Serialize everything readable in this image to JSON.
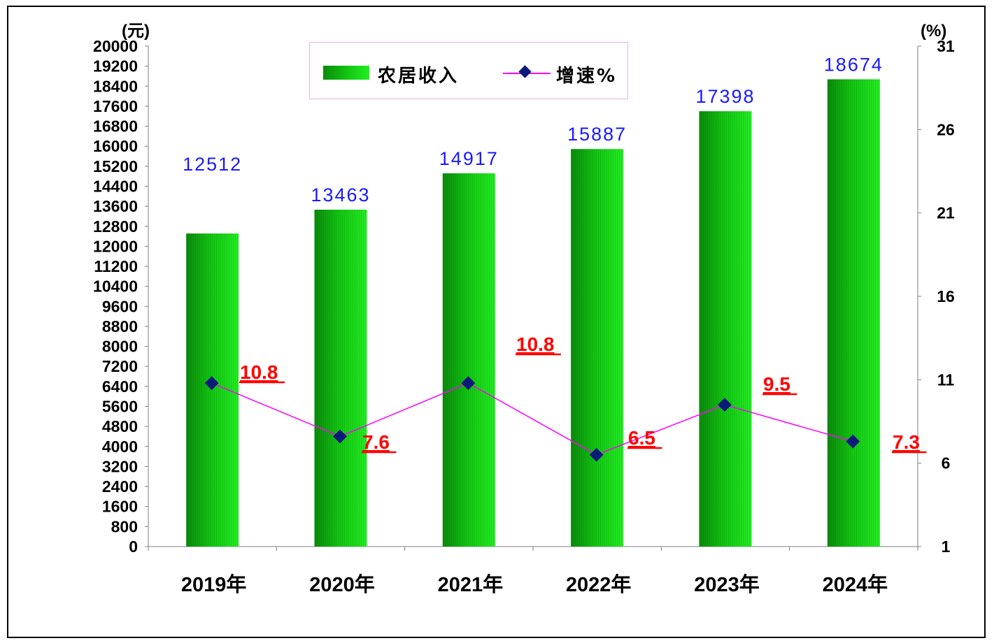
{
  "chart_data": {
    "type": "bar+line",
    "categories": [
      "2019年",
      "2020年",
      "2021年",
      "2022年",
      "2023年",
      "2024年"
    ],
    "series": [
      {
        "name": "农居收入",
        "type": "bar",
        "axis": "left",
        "values": [
          12512,
          13463,
          14917,
          15887,
          17398,
          18674
        ],
        "labels": [
          "12512",
          "13463",
          "14917",
          "15887",
          "17398",
          "18674"
        ]
      },
      {
        "name": "增速%",
        "type": "line",
        "axis": "right",
        "values": [
          10.8,
          7.6,
          10.8,
          6.5,
          9.5,
          7.3
        ],
        "labels": [
          "10.8",
          "7.6",
          "10.8",
          "6.5",
          "9.5",
          "7.3"
        ]
      }
    ],
    "left_axis": {
      "unit": "(元)",
      "min": 0,
      "max": 20000,
      "step": 800,
      "ticks": [
        "0",
        "800",
        "1600",
        "2400",
        "3200",
        "4000",
        "4800",
        "5600",
        "6400",
        "7200",
        "8000",
        "8800",
        "9600",
        "10400",
        "11200",
        "12000",
        "12800",
        "13600",
        "14400",
        "15200",
        "16000",
        "16800",
        "17600",
        "18400",
        "19200",
        "20000"
      ]
    },
    "right_axis": {
      "unit": "(%)",
      "min": 1,
      "max": 31,
      "step": 5,
      "ticks": [
        "1",
        "6",
        "11",
        "16",
        "21",
        "26",
        "31"
      ]
    },
    "legend_position": "top-center",
    "grid": false
  },
  "colors": {
    "bar_dark": "#0b8a0b",
    "bar_mid": "#12c312",
    "bar_light": "#22ee22",
    "line": "#ff00ff",
    "marker": "#0a1a7a",
    "bar_label": "#1a1aff",
    "line_label": "#ff0000",
    "axis": "#808080"
  }
}
